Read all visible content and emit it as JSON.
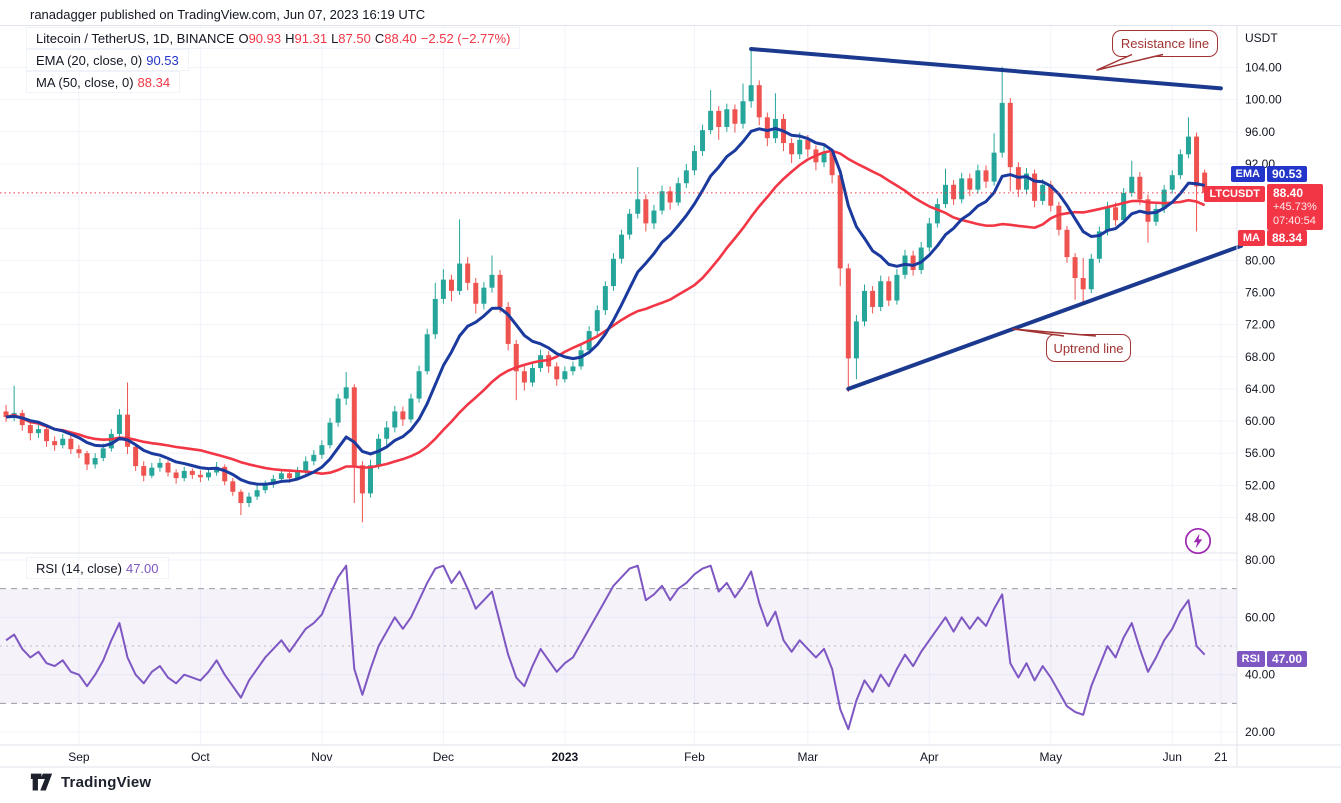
{
  "header": {
    "publish_text": "ranadagger published on TradingView.com, Jun 07, 2023 16:19 UTC"
  },
  "legend": {
    "symbol": "Litecoin / TetherUS, 1D, BINANCE",
    "open_label": "O",
    "open": "90.93",
    "high_label": "H",
    "high": "91.31",
    "low_label": "L",
    "low": "87.50",
    "close_label": "C",
    "close": "88.40",
    "change": "−2.52 (−2.77%)",
    "ema_label": "EMA (20, close, 0)",
    "ema_value": "90.53",
    "ma_label": "MA (50, close, 0)",
    "ma_value": "88.34",
    "rsi_label": "RSI (14, close)",
    "rsi_value": "47.00"
  },
  "axis": {
    "currency": "USDT"
  },
  "badges": {
    "ema": {
      "label": "EMA",
      "value": "90.53"
    },
    "symbol": {
      "label": "LTCUSDT",
      "price": "88.40",
      "change": "+45.73%",
      "countdown": "07:40:54"
    },
    "ma": {
      "label": "MA",
      "value": "88.34"
    },
    "rsi": {
      "label": "RSI",
      "value": "47.00"
    }
  },
  "annotations": {
    "resistance": {
      "text": "Resistance line"
    },
    "uptrend": {
      "text": "Uptrend line"
    }
  },
  "footer": {
    "brand": "TradingView"
  },
  "chart_data": {
    "type": "candlestick",
    "symbol": "LTCUSDT",
    "exchange": "BINANCE",
    "interval": "1D",
    "note": "OHLC/RSI approximated from pixels; one bar ≈ 2 days, Aug 2022 – Jun 07 2023",
    "price_axis": {
      "min": 44,
      "max": 109,
      "grid_ticks": [
        104,
        100,
        96,
        92,
        88,
        84,
        80,
        76,
        72,
        68,
        64,
        60,
        56,
        52,
        48
      ],
      "labeled_ticks": [
        104,
        100,
        96,
        92,
        80,
        76,
        72,
        68,
        64,
        60,
        56,
        52,
        48
      ]
    },
    "time_ticks": [
      {
        "label": "Sep",
        "i": 9
      },
      {
        "label": "Oct",
        "i": 24
      },
      {
        "label": "Nov",
        "i": 39
      },
      {
        "label": "Dec",
        "i": 54
      },
      {
        "label": "2023",
        "i": 69,
        "bold": true
      },
      {
        "label": "Feb",
        "i": 85
      },
      {
        "label": "Mar",
        "i": 99
      },
      {
        "label": "Apr",
        "i": 114
      },
      {
        "label": "May",
        "i": 129
      },
      {
        "label": "Jun",
        "i": 144
      },
      {
        "label": "21",
        "i": 150
      }
    ],
    "candles": [
      [
        61.2,
        62.0,
        59.9,
        60.5
      ],
      [
        60.5,
        64.4,
        60.0,
        61.0
      ],
      [
        61.0,
        61.4,
        58.8,
        59.5
      ],
      [
        59.5,
        60.0,
        57.6,
        58.5
      ],
      [
        58.5,
        59.6,
        57.9,
        59.0
      ],
      [
        59.0,
        59.3,
        56.8,
        57.5
      ],
      [
        57.5,
        58.1,
        56.3,
        57.0
      ],
      [
        57.0,
        58.4,
        56.6,
        57.8
      ],
      [
        57.8,
        58.2,
        55.9,
        56.5
      ],
      [
        56.5,
        57.0,
        55.4,
        56.0
      ],
      [
        56.0,
        56.3,
        53.9,
        54.6
      ],
      [
        54.6,
        56.0,
        54.1,
        55.4
      ],
      [
        55.4,
        57.2,
        55.0,
        56.6
      ],
      [
        56.6,
        59.0,
        56.2,
        58.4
      ],
      [
        58.4,
        61.5,
        58.0,
        60.8
      ],
      [
        60.8,
        64.8,
        55.9,
        56.8
      ],
      [
        56.8,
        57.2,
        53.8,
        54.4
      ],
      [
        54.4,
        55.0,
        52.5,
        53.2
      ],
      [
        53.2,
        54.8,
        52.9,
        54.2
      ],
      [
        54.2,
        55.4,
        53.7,
        54.8
      ],
      [
        54.8,
        55.1,
        53.1,
        53.6
      ],
      [
        53.6,
        54.0,
        52.2,
        52.9
      ],
      [
        52.9,
        54.3,
        52.5,
        53.8
      ],
      [
        53.8,
        54.1,
        52.8,
        53.3
      ],
      [
        53.3,
        53.9,
        52.4,
        53.0
      ],
      [
        53.0,
        54.2,
        52.6,
        53.6
      ],
      [
        53.6,
        54.9,
        53.2,
        54.3
      ],
      [
        54.3,
        54.6,
        52.0,
        52.5
      ],
      [
        52.5,
        52.9,
        50.7,
        51.2
      ],
      [
        51.2,
        51.5,
        48.3,
        49.8
      ],
      [
        49.8,
        51.1,
        49.3,
        50.6
      ],
      [
        50.6,
        52.0,
        50.2,
        51.4
      ],
      [
        51.4,
        52.6,
        51.0,
        52.1
      ],
      [
        52.1,
        53.3,
        51.7,
        52.8
      ],
      [
        52.8,
        54.0,
        52.4,
        53.5
      ],
      [
        53.5,
        53.9,
        52.3,
        52.9
      ],
      [
        52.9,
        54.3,
        52.6,
        53.8
      ],
      [
        53.8,
        55.6,
        53.4,
        55.0
      ],
      [
        55.0,
        56.4,
        54.5,
        55.8
      ],
      [
        55.8,
        57.6,
        55.3,
        57.0
      ],
      [
        57.0,
        60.4,
        56.6,
        59.8
      ],
      [
        59.8,
        63.4,
        59.3,
        62.8
      ],
      [
        62.8,
        66.1,
        62.0,
        64.2
      ],
      [
        64.2,
        64.6,
        49.8,
        54.5
      ],
      [
        54.5,
        55.0,
        47.4,
        51.0
      ],
      [
        51.0,
        55.2,
        50.5,
        54.5
      ],
      [
        54.5,
        58.4,
        54.0,
        57.8
      ],
      [
        57.8,
        60.0,
        56.9,
        59.2
      ],
      [
        59.2,
        61.9,
        58.6,
        61.2
      ],
      [
        61.2,
        61.8,
        59.4,
        60.2
      ],
      [
        60.2,
        63.4,
        59.8,
        62.8
      ],
      [
        62.8,
        66.9,
        62.3,
        66.2
      ],
      [
        66.2,
        71.5,
        65.8,
        70.8
      ],
      [
        70.8,
        77.2,
        70.2,
        75.2
      ],
      [
        75.2,
        78.9,
        74.6,
        77.6
      ],
      [
        77.6,
        78.2,
        74.9,
        76.2
      ],
      [
        76.2,
        85.1,
        75.7,
        79.6
      ],
      [
        79.6,
        80.4,
        76.3,
        77.2
      ],
      [
        77.2,
        77.8,
        73.4,
        74.6
      ],
      [
        74.6,
        77.3,
        73.9,
        76.6
      ],
      [
        76.6,
        80.6,
        76.0,
        78.2
      ],
      [
        78.2,
        78.8,
        73.5,
        74.2
      ],
      [
        74.2,
        74.8,
        68.8,
        69.6
      ],
      [
        69.6,
        70.1,
        62.6,
        66.2
      ],
      [
        66.2,
        66.8,
        63.8,
        64.8
      ],
      [
        64.8,
        67.2,
        64.3,
        66.6
      ],
      [
        66.6,
        68.9,
        66.1,
        68.2
      ],
      [
        68.2,
        68.7,
        66.0,
        66.8
      ],
      [
        66.8,
        67.3,
        64.4,
        65.2
      ],
      [
        65.2,
        66.8,
        64.8,
        66.2
      ],
      [
        66.2,
        67.4,
        65.7,
        66.8
      ],
      [
        66.8,
        69.4,
        66.4,
        68.8
      ],
      [
        68.8,
        71.8,
        68.3,
        71.2
      ],
      [
        71.2,
        74.4,
        70.7,
        73.8
      ],
      [
        73.8,
        77.4,
        73.2,
        76.8
      ],
      [
        76.8,
        80.9,
        76.2,
        80.2
      ],
      [
        80.2,
        83.8,
        79.6,
        83.2
      ],
      [
        83.2,
        86.4,
        82.6,
        85.8
      ],
      [
        85.8,
        91.6,
        85.2,
        87.6
      ],
      [
        87.6,
        88.2,
        83.6,
        84.6
      ],
      [
        84.6,
        86.9,
        83.9,
        86.2
      ],
      [
        86.2,
        89.3,
        85.7,
        88.6
      ],
      [
        88.6,
        89.2,
        86.3,
        87.2
      ],
      [
        87.2,
        90.3,
        86.8,
        89.6
      ],
      [
        89.6,
        92.0,
        89.0,
        91.2
      ],
      [
        91.2,
        94.3,
        90.6,
        93.6
      ],
      [
        93.6,
        96.9,
        93.0,
        96.2
      ],
      [
        96.2,
        101.2,
        95.7,
        98.6
      ],
      [
        98.6,
        99.2,
        95.0,
        96.6
      ],
      [
        96.6,
        99.5,
        96.0,
        98.8
      ],
      [
        98.8,
        99.4,
        95.9,
        97.0
      ],
      [
        97.0,
        102.0,
        96.4,
        99.8
      ],
      [
        99.8,
        106.3,
        99.0,
        101.8
      ],
      [
        101.8,
        102.4,
        96.8,
        97.8
      ],
      [
        97.8,
        98.4,
        94.2,
        95.2
      ],
      [
        95.2,
        100.8,
        94.6,
        97.6
      ],
      [
        97.6,
        98.2,
        93.6,
        94.6
      ],
      [
        94.6,
        95.2,
        92.1,
        93.2
      ],
      [
        93.2,
        95.9,
        92.6,
        95.0
      ],
      [
        95.0,
        95.6,
        92.8,
        93.8
      ],
      [
        93.8,
        94.3,
        91.2,
        92.2
      ],
      [
        92.2,
        94.4,
        91.6,
        93.4
      ],
      [
        93.4,
        93.9,
        89.6,
        90.6
      ],
      [
        90.6,
        91.0,
        76.8,
        79.0
      ],
      [
        79.0,
        79.6,
        63.6,
        67.8
      ],
      [
        67.8,
        73.2,
        65.2,
        72.4
      ],
      [
        72.4,
        77.0,
        71.8,
        76.2
      ],
      [
        76.2,
        76.8,
        73.4,
        74.2
      ],
      [
        74.2,
        78.1,
        73.7,
        77.4
      ],
      [
        77.4,
        78.0,
        74.3,
        75.0
      ],
      [
        75.0,
        78.9,
        74.5,
        78.2
      ],
      [
        78.2,
        81.3,
        77.7,
        80.6
      ],
      [
        80.6,
        81.2,
        78.1,
        78.8
      ],
      [
        78.8,
        82.3,
        78.3,
        81.6
      ],
      [
        81.6,
        85.3,
        81.1,
        84.6
      ],
      [
        84.6,
        87.7,
        84.1,
        87.0
      ],
      [
        87.0,
        91.4,
        86.5,
        89.4
      ],
      [
        89.4,
        90.0,
        86.9,
        87.6
      ],
      [
        87.6,
        90.9,
        87.1,
        90.2
      ],
      [
        90.2,
        90.8,
        88.0,
        88.8
      ],
      [
        88.8,
        91.9,
        88.3,
        91.2
      ],
      [
        91.2,
        91.8,
        89.0,
        89.8
      ],
      [
        89.8,
        95.8,
        89.3,
        93.4
      ],
      [
        93.4,
        104.1,
        92.8,
        99.6
      ],
      [
        99.6,
        100.2,
        88.6,
        91.6
      ],
      [
        91.6,
        92.2,
        87.9,
        88.8
      ],
      [
        88.8,
        91.5,
        88.2,
        90.8
      ],
      [
        90.8,
        91.3,
        86.6,
        87.4
      ],
      [
        87.4,
        90.1,
        86.9,
        89.4
      ],
      [
        89.4,
        89.9,
        86.1,
        86.8
      ],
      [
        86.8,
        87.3,
        83.1,
        83.8
      ],
      [
        83.8,
        84.3,
        79.7,
        80.4
      ],
      [
        80.4,
        80.9,
        75.1,
        77.8
      ],
      [
        77.8,
        80.3,
        74.6,
        76.4
      ],
      [
        76.4,
        80.8,
        75.9,
        80.2
      ],
      [
        80.2,
        84.2,
        79.7,
        83.6
      ],
      [
        83.6,
        87.3,
        83.1,
        86.6
      ],
      [
        86.6,
        87.2,
        84.3,
        85.0
      ],
      [
        85.0,
        89.0,
        84.5,
        88.4
      ],
      [
        88.4,
        92.4,
        87.9,
        90.4
      ],
      [
        90.4,
        91.0,
        86.9,
        87.6
      ],
      [
        87.6,
        88.2,
        82.2,
        84.8
      ],
      [
        84.8,
        87.0,
        84.3,
        86.4
      ],
      [
        86.4,
        89.4,
        85.9,
        88.8
      ],
      [
        88.8,
        91.2,
        88.3,
        90.6
      ],
      [
        90.6,
        93.8,
        90.1,
        93.2
      ],
      [
        93.2,
        97.8,
        92.7,
        95.4
      ],
      [
        95.4,
        95.9,
        83.6,
        89.2
      ],
      [
        90.93,
        91.31,
        87.5,
        88.4
      ]
    ],
    "overlays": {
      "ema": {
        "label": "EMA (20, close, 0)",
        "window_bars": 10,
        "last_value": 90.53,
        "color": "#1b3a9e"
      },
      "ma": {
        "label": "MA (50, close, 0)",
        "window_bars": 25,
        "last_value": 88.34,
        "color": "#f23645"
      }
    },
    "last_price_line": 88.4,
    "trendlines": [
      {
        "name": "resistance",
        "from": {
          "i": 92,
          "price": 106.3
        },
        "to": {
          "i": 150,
          "price": 101.4
        }
      },
      {
        "name": "uptrend",
        "from": {
          "i": 104,
          "price": 64.0
        },
        "to": {
          "i": 152.5,
          "price": 81.8
        }
      }
    ],
    "rsi": {
      "period": 14,
      "last": 47.0,
      "ticks": [
        80,
        60,
        40,
        20
      ],
      "levels": {
        "upper": 70,
        "middle": 50,
        "lower": 30
      },
      "values": [
        52,
        54,
        49,
        46,
        48,
        44,
        43,
        45,
        41,
        40,
        36,
        40,
        45,
        52,
        58,
        46,
        40,
        37,
        41,
        43,
        39,
        37,
        40,
        39,
        38,
        41,
        45,
        40,
        36,
        32,
        38,
        42,
        46,
        49,
        52,
        48,
        52,
        56,
        58,
        61,
        68,
        74,
        78,
        42,
        33,
        42,
        50,
        55,
        60,
        56,
        60,
        66,
        72,
        77,
        78,
        72,
        76,
        70,
        63,
        66,
        69,
        58,
        47,
        39,
        36,
        43,
        49,
        45,
        41,
        44,
        46,
        51,
        56,
        61,
        66,
        71,
        74,
        77,
        78,
        66,
        68,
        71,
        66,
        70,
        72,
        75,
        77,
        78,
        69,
        72,
        67,
        71,
        76,
        65,
        57,
        62,
        52,
        48,
        52,
        49,
        46,
        49,
        42,
        28,
        21,
        31,
        38,
        34,
        40,
        36,
        42,
        47,
        43,
        48,
        52,
        56,
        60,
        55,
        60,
        56,
        60,
        57,
        63,
        68,
        44,
        39,
        44,
        38,
        43,
        39,
        34,
        29,
        27,
        26,
        36,
        43,
        50,
        46,
        53,
        58,
        49,
        41,
        46,
        52,
        56,
        62,
        66,
        50,
        47
      ]
    },
    "colors": {
      "up": "#26a69a",
      "down": "#ef5350",
      "ema_line": "#1b3a9e",
      "ma_line": "#f23645",
      "trend": "#1b3a8f",
      "rsi_line": "#7e57c2",
      "grid": "#f0f3fa",
      "separator": "#e0e3eb",
      "text": "#131722",
      "badge_blue": "#2336c9",
      "badge_red": "#f23645",
      "badge_purple": "#7e57c2",
      "callout": "#a23333",
      "flash": "#9c27b0"
    }
  }
}
